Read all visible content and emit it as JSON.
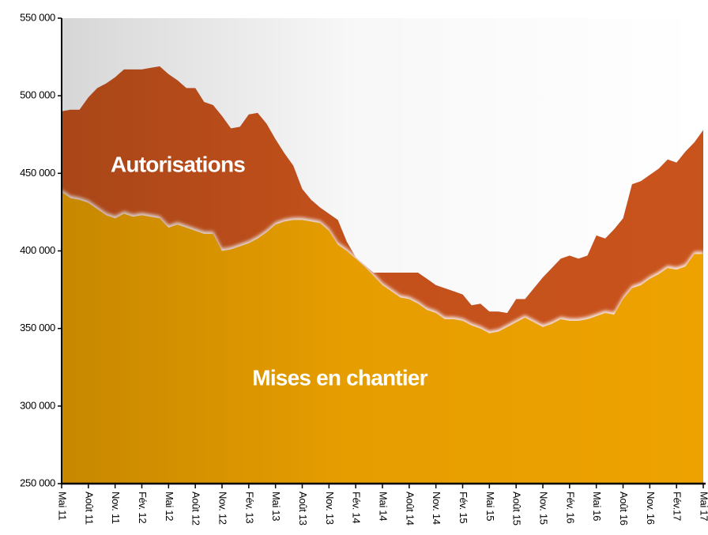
{
  "chart_data": {
    "type": "area",
    "categories": [
      "Mai 11",
      null,
      null,
      "Août 11",
      null,
      null,
      "Nov. 11",
      null,
      null,
      "Fév. 12",
      null,
      null,
      "Mai 12",
      null,
      null,
      "Août 12",
      null,
      null,
      "Nov. 12",
      null,
      null,
      "Fév. 13",
      null,
      null,
      "Mai 13",
      null,
      null,
      "Août 13",
      null,
      null,
      "Nov. 13",
      null,
      null,
      "Fév. 14",
      null,
      null,
      "Mai 14",
      null,
      null,
      "Août 14",
      null,
      null,
      "Nov. 14",
      null,
      null,
      "Fév. 15",
      null,
      null,
      "Mai 15",
      null,
      null,
      "Août 15",
      null,
      null,
      "Nov. 15",
      null,
      null,
      "Fév. 16",
      null,
      null,
      "Mai 16",
      null,
      null,
      "Août 16",
      null,
      null,
      "Nov. 16",
      null,
      null,
      "Fév.17",
      null,
      null,
      "Mai 17"
    ],
    "series": [
      {
        "name": "Autorisations",
        "color": "#c9521d",
        "values": [
          490000,
          491000,
          491000,
          499000,
          505000,
          508000,
          512000,
          517000,
          517000,
          517000,
          518000,
          519000,
          514000,
          510000,
          505000,
          505000,
          496000,
          494000,
          487000,
          479000,
          480000,
          488000,
          489000,
          482000,
          472000,
          463000,
          455000,
          440000,
          433000,
          428000,
          424000,
          420000,
          406000,
          396000,
          391000,
          386000,
          386000,
          386000,
          386000,
          386000,
          386000,
          382000,
          378000,
          376000,
          374000,
          372000,
          365000,
          366000,
          361000,
          361000,
          360000,
          369000,
          369000,
          376000,
          383000,
          389000,
          395000,
          397000,
          395000,
          397000,
          410000,
          408000,
          414000,
          421000,
          443000,
          445000,
          449000,
          453000,
          459000,
          457000,
          464000,
          470000,
          478000
        ]
      },
      {
        "name": "Mises en chantier",
        "color": "#eda200",
        "values": [
          438000,
          434000,
          433000,
          431000,
          427000,
          423000,
          421000,
          424000,
          422000,
          423000,
          422000,
          421000,
          415000,
          417000,
          415000,
          413000,
          411000,
          411000,
          400000,
          401000,
          403000,
          405000,
          408000,
          412000,
          417000,
          419000,
          420000,
          420000,
          419000,
          418000,
          413000,
          404000,
          400000,
          395000,
          390000,
          384000,
          378000,
          374000,
          370000,
          369000,
          366000,
          362000,
          360000,
          356000,
          356000,
          355000,
          352000,
          350000,
          347000,
          348000,
          351000,
          354000,
          357000,
          354000,
          351000,
          353000,
          356000,
          355000,
          355000,
          356000,
          358000,
          360000,
          359000,
          369000,
          376000,
          378000,
          382000,
          385000,
          389000,
          388000,
          390000,
          398000,
          398000
        ]
      }
    ],
    "ylim": [
      250000,
      550000
    ],
    "yticks": [
      {
        "value": 250000,
        "label": "250 000"
      },
      {
        "value": 300000,
        "label": "300 000"
      },
      {
        "value": 350000,
        "label": "350 000"
      },
      {
        "value": 400000,
        "label": "400 000"
      },
      {
        "value": 450000,
        "label": "450 000"
      },
      {
        "value": 500000,
        "label": "500 000"
      },
      {
        "value": 550000,
        "label": "550 000"
      }
    ]
  }
}
